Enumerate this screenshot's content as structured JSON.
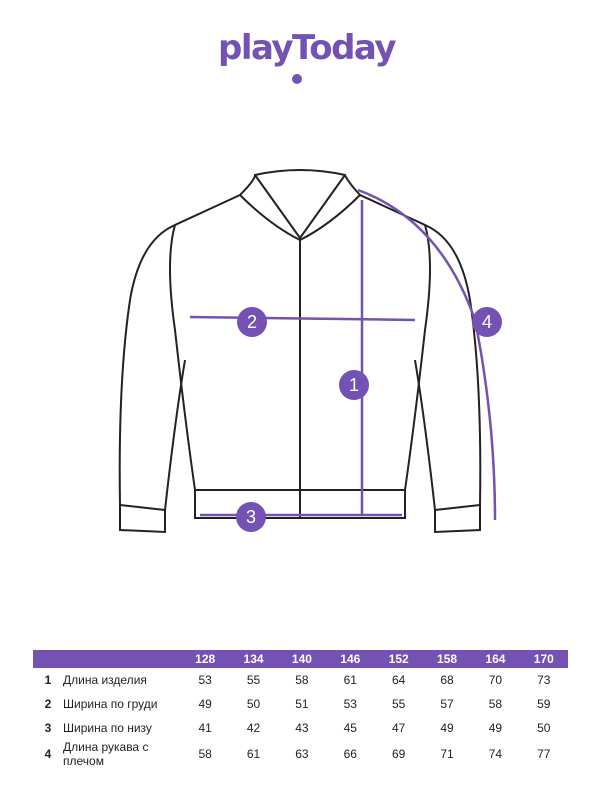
{
  "brand": {
    "logo_text": "playToday",
    "color": "#7352b3"
  },
  "diagram": {
    "markers": [
      "1",
      "2",
      "3",
      "4"
    ],
    "marker_meanings": {
      "1": "Длина изделия",
      "2": "Ширина по груди",
      "3": "Ширина по низу",
      "4": "Длина рукава с плечом"
    }
  },
  "table": {
    "sizes": [
      "128",
      "134",
      "140",
      "146",
      "152",
      "158",
      "164",
      "170"
    ],
    "rows": [
      {
        "num": "1",
        "label": "Длина изделия",
        "values": [
          "53",
          "55",
          "58",
          "61",
          "64",
          "68",
          "70",
          "73"
        ]
      },
      {
        "num": "2",
        "label": "Ширина по груди",
        "values": [
          "49",
          "50",
          "51",
          "53",
          "55",
          "57",
          "58",
          "59"
        ]
      },
      {
        "num": "3",
        "label": "Ширина по низу",
        "values": [
          "41",
          "42",
          "43",
          "45",
          "47",
          "49",
          "49",
          "50"
        ]
      },
      {
        "num": "4",
        "label": "Длина рукава с плечом",
        "values": [
          "58",
          "61",
          "63",
          "66",
          "69",
          "71",
          "74",
          "77"
        ]
      }
    ]
  }
}
